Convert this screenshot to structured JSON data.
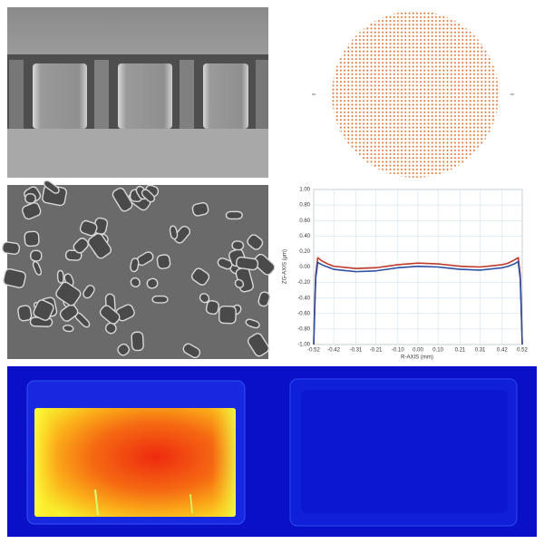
{
  "chart_data": {
    "type": "line",
    "xlabel": "R-AXIS (mm)",
    "ylabel": "ZG-AXIS (μm)",
    "x": [
      -0.52,
      -0.515,
      -0.51,
      -0.5,
      -0.48,
      -0.45,
      -0.42,
      -0.31,
      -0.21,
      -0.1,
      0,
      0.1,
      0.21,
      0.31,
      0.42,
      0.45,
      0.48,
      0.5,
      0.51,
      0.515,
      0.52
    ],
    "series": [
      {
        "name": "red",
        "color": "#c0392b",
        "values": [
          -1,
          -0.5,
          -0.1,
          0.12,
          0.08,
          0.04,
          0.01,
          -0.02,
          -0.01,
          0.03,
          0.05,
          0.04,
          0.01,
          0,
          0.03,
          0.05,
          0.09,
          0.12,
          -0.1,
          -0.5,
          -1
        ]
      },
      {
        "name": "blue",
        "color": "#2c4fa3",
        "values": [
          -1,
          -0.55,
          -0.15,
          0.06,
          0.03,
          0,
          -0.03,
          -0.06,
          -0.05,
          -0.01,
          0.01,
          0,
          -0.03,
          -0.04,
          -0.01,
          0.01,
          0.04,
          0.07,
          -0.15,
          -0.55,
          -1
        ]
      }
    ],
    "xlim": [
      -0.52,
      0.52
    ],
    "ylim": [
      -1,
      1
    ],
    "xticks": [
      -0.52,
      -0.42,
      -0.31,
      -0.21,
      {
        "value": -0.1,
        "label": "-0.10"
      },
      {
        "value": 0,
        "label": "0.00"
      },
      {
        "value": 0.1,
        "label": "0.10"
      },
      0.21,
      0.31,
      0.42,
      0.52
    ],
    "yticks": [
      {
        "value": 1,
        "label": "1.00"
      },
      {
        "value": 0.8,
        "label": "0.80"
      },
      {
        "value": 0.6,
        "label": "0.60"
      },
      {
        "value": 0.4,
        "label": "0.40"
      },
      {
        "value": 0.2,
        "label": "0.20"
      },
      {
        "value": 0,
        "label": "0.00"
      },
      {
        "value": -0.2,
        "label": "-0.20"
      },
      {
        "value": -0.4,
        "label": "-0.40"
      },
      {
        "value": -0.6,
        "label": "-0.60"
      },
      {
        "value": -0.8,
        "label": "-0.80"
      },
      {
        "value": -1,
        "label": "-1.00"
      }
    ],
    "grid": true
  }
}
